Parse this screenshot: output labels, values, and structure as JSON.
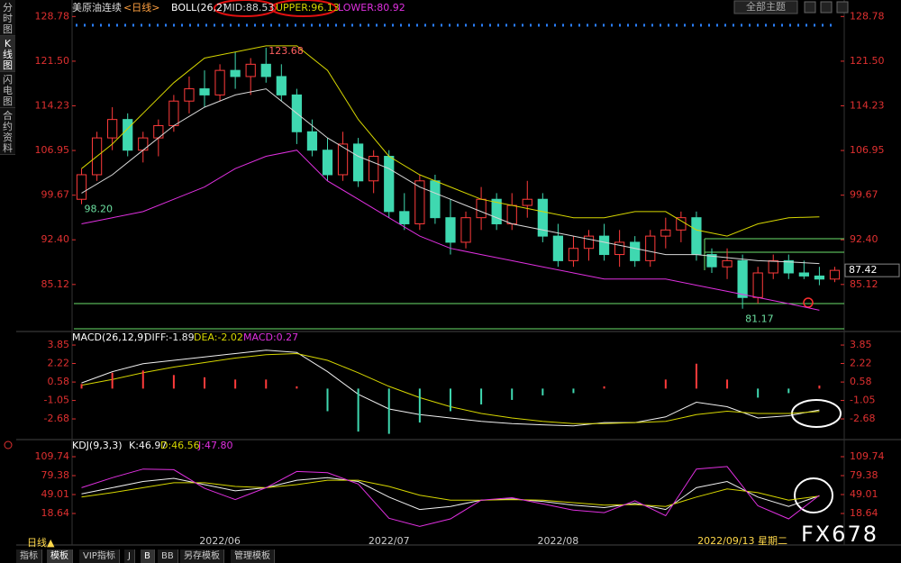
{
  "ui": {
    "side_tabs": [
      "分时图",
      "K线图",
      "闪电图",
      "合约资料"
    ],
    "theme_button": "全部主题",
    "period_button": "日线▲",
    "bottom_tabs": [
      "指标",
      "模板",
      "VIP指标",
      "J",
      "B",
      "BB",
      "另存模板",
      "管理模板"
    ],
    "watermark": "FX678"
  },
  "chart_data": [
    {
      "type": "candlestick",
      "title": "美原油连续",
      "subtitle": "<日线>",
      "indicator": "BOLL(26,2)",
      "categories": [
        null,
        null,
        null,
        null,
        null,
        null,
        null,
        null,
        null,
        "2022/06",
        null,
        null,
        null,
        null,
        null,
        null,
        null,
        null,
        null,
        null,
        "2022/07",
        null,
        null,
        null,
        null,
        null,
        null,
        null,
        null,
        null,
        null,
        "2022/08",
        null,
        null,
        null,
        null,
        null,
        null,
        null,
        null,
        null,
        null,
        null,
        "2022/09/13 星期二",
        null,
        null,
        null,
        null,
        null,
        null
      ],
      "open": [
        99,
        103,
        109,
        112,
        107,
        109,
        111,
        115,
        117,
        116,
        120,
        119,
        121,
        119,
        116,
        110,
        107,
        103,
        108,
        102,
        106,
        97,
        95,
        102,
        96,
        92,
        96,
        99,
        95,
        98,
        99,
        93,
        89,
        91,
        93,
        90,
        92,
        89,
        93,
        94,
        96,
        90,
        88,
        89,
        83,
        87,
        89,
        87,
        86.5,
        86
      ],
      "high": [
        104,
        110,
        114,
        113,
        110,
        112,
        116,
        119,
        120,
        121,
        123,
        122,
        123.68,
        121,
        117,
        112,
        109,
        110,
        109,
        107,
        107,
        100,
        103,
        103,
        99,
        97,
        101,
        100,
        100,
        102,
        100,
        95,
        93,
        94,
        95,
        94,
        93,
        94,
        96,
        97,
        97,
        91,
        91,
        90,
        88,
        90,
        90,
        89,
        88,
        88
      ],
      "low": [
        98.2,
        102,
        107,
        106,
        105,
        106,
        110,
        113,
        114,
        115,
        117,
        116,
        118,
        115,
        108,
        106,
        102,
        102,
        101,
        100,
        96,
        94,
        94,
        95,
        90,
        91,
        94,
        94,
        94,
        96,
        92,
        88,
        88,
        89,
        89,
        88,
        88,
        88,
        91,
        92,
        89,
        87,
        86,
        81.17,
        82,
        86,
        86,
        86,
        85,
        85.5
      ],
      "close": [
        103,
        109,
        112,
        107,
        109,
        111,
        115,
        117,
        116,
        120,
        119,
        121,
        119,
        116,
        110,
        107,
        103,
        108,
        102,
        106,
        97,
        95,
        102,
        96,
        92,
        96,
        99,
        95,
        98,
        99,
        93,
        89,
        91,
        93,
        90,
        92,
        89,
        93,
        94,
        96,
        90,
        88,
        89,
        83,
        87,
        89,
        87,
        86.5,
        86,
        87.42
      ],
      "up_color": "#ff3b3b",
      "down_color": "#3fd8b0",
      "x": [
        0,
        2,
        4,
        6,
        8,
        10,
        12,
        14,
        16,
        18,
        20,
        22,
        24,
        26,
        28,
        30,
        32,
        34,
        36,
        38,
        40,
        42,
        44,
        46,
        48
      ],
      "series": [
        {
          "name": "MID:88.53",
          "color": "#d8d8d8",
          "values": [
            100,
            103,
            107,
            111,
            114,
            116,
            117,
            113,
            109,
            106,
            104,
            101,
            99,
            97,
            95,
            94,
            93,
            92,
            91,
            90,
            90,
            89.5,
            89,
            88.8,
            88.53
          ]
        },
        {
          "name": "UPPER:96.13",
          "color": "#d6d600",
          "values": [
            104,
            108,
            113,
            118,
            122,
            123,
            124,
            124,
            120,
            112,
            106,
            103,
            101,
            99,
            98,
            97,
            96,
            96,
            97,
            97,
            94,
            93,
            95,
            96,
            96.13
          ]
        },
        {
          "name": "LOWER:80.92",
          "color": "#e030e0",
          "values": [
            95,
            96,
            97,
            99,
            101,
            104,
            106,
            107,
            102,
            99,
            96,
            93,
            91,
            90,
            89,
            88,
            87,
            86,
            86,
            86,
            85,
            84,
            83,
            82,
            80.92
          ]
        }
      ],
      "annotations": [
        "123.68",
        "98.20",
        "81.17",
        "87.42"
      ],
      "ylim": [
        77.9,
        130
      ],
      "yticks": [
        85.12,
        {
          "value": 92.4,
          "label": "92.40"
        },
        99.67,
        106.95,
        114.23,
        {
          "value": 121.5,
          "label": "121.50"
        },
        128.78
      ]
    },
    {
      "type": "macd",
      "title": "MACD(26,12,9)",
      "x": [
        0,
        2,
        4,
        6,
        8,
        10,
        12,
        14,
        16,
        18,
        20,
        22,
        24,
        26,
        28,
        30,
        32,
        34,
        36,
        38,
        40,
        42,
        44,
        46,
        48
      ],
      "series": [
        {
          "name": "DIFF:-1.89",
          "type": "line",
          "color": "#f0f0f0",
          "values": [
            0.5,
            1.5,
            2.2,
            2.5,
            2.8,
            3.1,
            3.4,
            3.2,
            1.5,
            -0.5,
            -1.8,
            -2.3,
            -2.6,
            -2.9,
            -3.1,
            -3.2,
            -3.3,
            -3.0,
            -3.0,
            -2.5,
            -1.2,
            -1.6,
            -2.6,
            -2.4,
            -1.89
          ]
        },
        {
          "name": "DEA:-2.02",
          "type": "line",
          "color": "#d6d600",
          "values": [
            0.3,
            0.8,
            1.4,
            1.9,
            2.3,
            2.7,
            3.0,
            3.1,
            2.5,
            1.4,
            0.2,
            -0.8,
            -1.6,
            -2.2,
            -2.6,
            -2.9,
            -3.1,
            -3.1,
            -3.0,
            -2.9,
            -2.3,
            -2.0,
            -2.2,
            -2.2,
            -2.02
          ]
        },
        {
          "name": "MACD:0.27",
          "type": "bar",
          "color": "#e030e0",
          "up_color": "#ff3b3b",
          "down_color": "#3fd8b0",
          "values": [
            0.4,
            1.4,
            1.6,
            1.2,
            1.0,
            0.8,
            0.8,
            0.2,
            -2.0,
            -3.8,
            -4.0,
            -3.0,
            -2.0,
            -1.4,
            -1.0,
            -0.6,
            -0.4,
            0.2,
            0.0,
            0.8,
            2.2,
            0.8,
            -0.8,
            -0.4,
            0.27
          ]
        }
      ],
      "ylim": [
        -4.27,
        4.65
      ],
      "yticks": [
        3.85,
        2.22,
        0.58,
        -1.05,
        -2.68
      ]
    },
    {
      "type": "line",
      "title": "KDJ(9,3,3)",
      "x": [
        0,
        2,
        4,
        6,
        8,
        10,
        12,
        14,
        16,
        18,
        20,
        22,
        24,
        26,
        28,
        30,
        32,
        34,
        36,
        38,
        40,
        42,
        44,
        46,
        48
      ],
      "series": [
        {
          "name": "K:46.97",
          "color": "#f0f0f0",
          "values": [
            50,
            60,
            70,
            75,
            65,
            55,
            60,
            72,
            76,
            70,
            45,
            25,
            30,
            40,
            42,
            38,
            32,
            28,
            35,
            25,
            60,
            70,
            45,
            30,
            46.97
          ]
        },
        {
          "name": "D:46.56",
          "color": "#d6d600",
          "values": [
            45,
            52,
            60,
            68,
            68,
            62,
            60,
            65,
            72,
            72,
            62,
            48,
            40,
            40,
            41,
            40,
            36,
            32,
            33,
            30,
            45,
            58,
            52,
            40,
            46.56
          ]
        },
        {
          "name": "J:47.80",
          "color": "#e030e0",
          "values": [
            60,
            76,
            90,
            89,
            59,
            41,
            60,
            86,
            84,
            66,
            11,
            -2,
            10,
            40,
            44,
            34,
            24,
            20,
            39,
            15,
            90,
            94,
            31,
            10,
            47.8
          ]
        }
      ],
      "ylim": [
        -24.7,
        127.1
      ],
      "yticks": [
        109.74,
        79.38,
        49.01,
        18.64
      ]
    }
  ]
}
